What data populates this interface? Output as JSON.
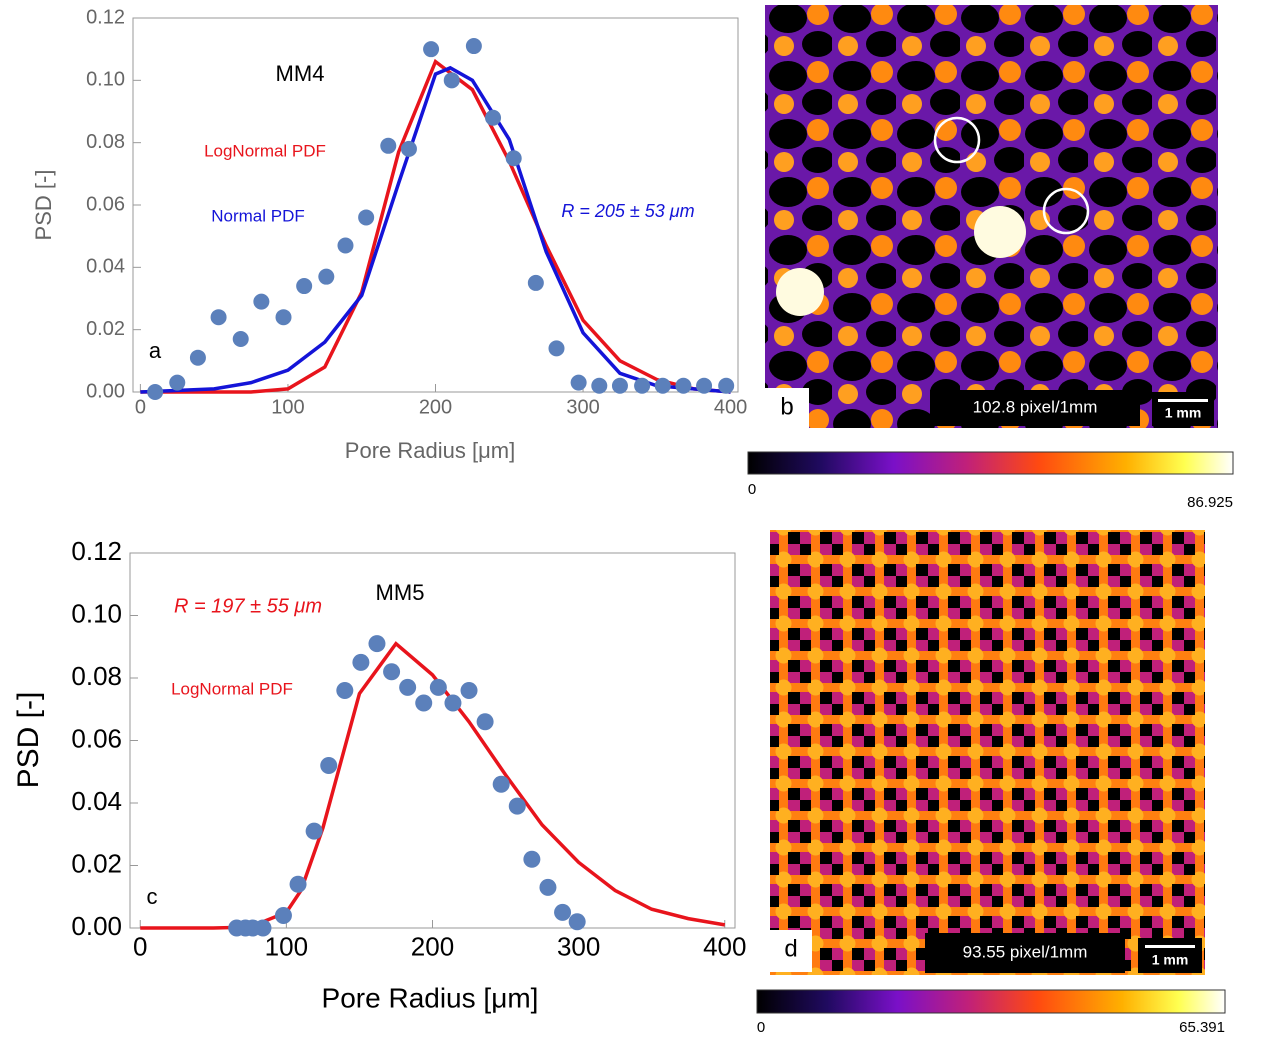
{
  "chart_data": [
    {
      "type": "scatter",
      "title": "MM4",
      "x_label": "Pore Radius  [μm]",
      "y_label": "PSD [-]",
      "xlim": [
        -5,
        405
      ],
      "ylim": [
        0,
        0.12
      ],
      "xticks": [
        0,
        100,
        200,
        300,
        400
      ],
      "yticks": [
        {
          "value": 0,
          "label": "0.00"
        },
        {
          "value": 0.02,
          "label": "0.02"
        },
        {
          "value": 0.04,
          "label": "0.04"
        },
        {
          "value": 0.06,
          "label": "0.06"
        },
        {
          "value": 0.08,
          "label": "0.08"
        },
        {
          "value": 0.1,
          "label": "0.10"
        },
        {
          "value": 0.12,
          "label": "0.12"
        }
      ],
      "annotations": [
        "R = 205 ± 53 μm",
        "a"
      ],
      "series": [
        {
          "type": "scatter",
          "color": "#5b80bb",
          "x": [
            10,
            25,
            39,
            53,
            68,
            82,
            97,
            111,
            126,
            139,
            153,
            168,
            182,
            197,
            211,
            226,
            239,
            253,
            268,
            282,
            297,
            311,
            325,
            340,
            354,
            368,
            382,
            397
          ],
          "values": [
            0,
            0.003,
            0.011,
            0.024,
            0.017,
            0.029,
            0.024,
            0.034,
            0.037,
            0.047,
            0.056,
            0.079,
            0.078,
            0.11,
            0.1,
            0.111,
            0.088,
            0.075,
            0.035,
            0.014,
            0.003,
            0.002,
            0.002,
            0.002,
            0.002,
            0.002,
            0.002,
            0.002
          ]
        },
        {
          "type": "line",
          "name": "LogNormal PDF",
          "color": "#e8141c",
          "x": [
            0,
            50,
            75,
            100,
            125,
            150,
            175,
            200,
            225,
            250,
            275,
            300,
            325,
            350,
            375,
            400
          ],
          "values": [
            0,
            0,
            0,
            0.001,
            0.008,
            0.032,
            0.077,
            0.106,
            0.097,
            0.074,
            0.047,
            0.023,
            0.01,
            0.004,
            0.001,
            0
          ]
        },
        {
          "type": "line",
          "name": "Normal PDF",
          "color": "#1414d8",
          "x": [
            0,
            50,
            75,
            100,
            125,
            150,
            175,
            200,
            210,
            225,
            250,
            275,
            300,
            325,
            350,
            375,
            400
          ],
          "values": [
            0,
            0.001,
            0.003,
            0.007,
            0.016,
            0.031,
            0.067,
            0.102,
            0.104,
            0.1,
            0.081,
            0.045,
            0.019,
            0.006,
            0.002,
            0.001,
            0
          ]
        }
      ]
    },
    {
      "type": "scatter",
      "title": "MM5",
      "x_label": "Pore Radius  [μm]",
      "y_label": "PSD [-]",
      "xlim": [
        -7,
        407
      ],
      "ylim": [
        0,
        0.12
      ],
      "xticks": [
        0,
        100,
        200,
        300,
        400
      ],
      "yticks": [
        {
          "value": 0,
          "label": "0.00"
        },
        {
          "value": 0.02,
          "label": "0.02"
        },
        {
          "value": 0.04,
          "label": "0.04"
        },
        {
          "value": 0.06,
          "label": "0.06"
        },
        {
          "value": 0.08,
          "label": "0.08"
        },
        {
          "value": 0.1,
          "label": "0.10"
        },
        {
          "value": 0.12,
          "label": "0.12"
        }
      ],
      "annotations": [
        "R = 197 ± 55 μm",
        "c"
      ],
      "series": [
        {
          "type": "line",
          "name": "LogNormal PDF",
          "color": "#e8141c",
          "x": [
            0,
            50,
            75,
            100,
            110,
            125,
            150,
            175,
            200,
            225,
            250,
            275,
            300,
            325,
            350,
            375,
            400
          ],
          "values": [
            0,
            0,
            0.0003,
            0.005,
            0.012,
            0.032,
            0.075,
            0.091,
            0.081,
            0.066,
            0.049,
            0.033,
            0.021,
            0.012,
            0.006,
            0.003,
            0.001
          ]
        },
        {
          "type": "scatter",
          "color": "#5b80bb",
          "x": [
            66,
            72,
            77,
            84,
            98,
            108,
            119,
            129,
            140,
            151,
            162,
            172,
            183,
            194,
            204,
            214,
            225,
            236,
            247,
            258,
            268,
            279,
            289,
            299
          ],
          "values": [
            0,
            0,
            0,
            0,
            0.004,
            0.014,
            0.031,
            0.052,
            0.076,
            0.085,
            0.091,
            0.082,
            0.077,
            0.072,
            0.077,
            0.072,
            0.076,
            0.066,
            0.046,
            0.039,
            0.022,
            0.013,
            0.005,
            0.002
          ]
        }
      ]
    }
  ],
  "images": [
    {
      "panel_label": "b",
      "scale_text": "102.8 pixel/1mm",
      "scalebar_label": "1 mm",
      "colorbar_min": 0,
      "colorbar_max": 86.925
    },
    {
      "panel_label": "d",
      "scale_text": "93.55 pixel/1mm",
      "scalebar_label": "1 mm",
      "colorbar_min": 0,
      "colorbar_max": 65.391
    }
  ]
}
